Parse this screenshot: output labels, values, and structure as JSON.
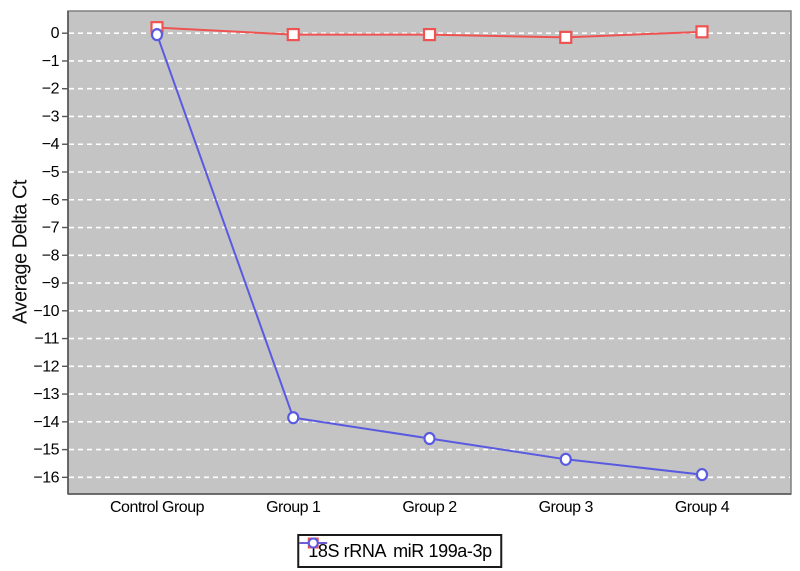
{
  "chart_data": {
    "type": "line",
    "title": "",
    "xlabel": "",
    "ylabel": "Average Delta Ct",
    "categories": [
      "Control Group",
      "Group 1",
      "Group 2",
      "Group 3",
      "Group 4"
    ],
    "series": [
      {
        "name": "18S rRNA",
        "marker": "square",
        "color": "#ee5352",
        "values": [
          0.2,
          -0.05,
          -0.05,
          -0.15,
          0.05
        ]
      },
      {
        "name": "miR 199a-3p",
        "marker": "circle",
        "color": "#5a5ae1",
        "values": [
          -0.05,
          -13.85,
          -14.6,
          -15.35,
          -15.9
        ]
      }
    ],
    "yticks": [
      0,
      -1,
      -2,
      -3,
      -4,
      -5,
      -6,
      -7,
      -8,
      -9,
      -10,
      -11,
      -12,
      -13,
      -14,
      -15,
      -16
    ],
    "ylim": [
      -16.6,
      0.8
    ],
    "grid": "horizontal-dashed-white",
    "legend_position": "bottom-center"
  },
  "colors": {
    "plot_background": "#c4c4c4",
    "grid_line": "#ffffff",
    "plot_border": "#808080",
    "axis_line": "#555555",
    "tick_text": "#000000",
    "marker_fill": "#ffffff"
  }
}
